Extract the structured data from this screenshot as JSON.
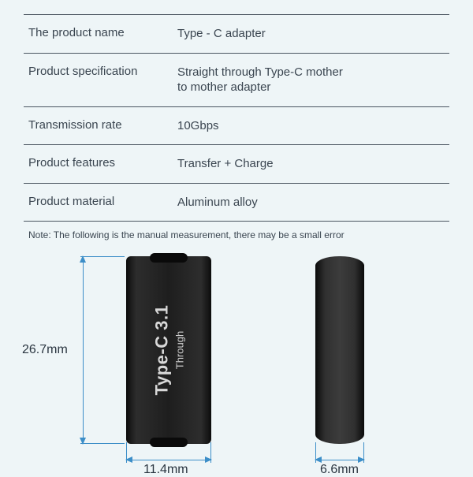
{
  "specs": {
    "rows": [
      {
        "label": "The product name",
        "value": "Type - C adapter"
      },
      {
        "label": "Product specification",
        "value": "Straight through Type-C mother\n to mother adapter"
      },
      {
        "label": "Transmission rate",
        "value": "10Gbps"
      },
      {
        "label": "Product features",
        "value": "Transfer + Charge"
      },
      {
        "label": "Product material",
        "value": "Aluminum alloy"
      }
    ],
    "note": "Note: The following is the manual measurement, there may be a small error"
  },
  "diagram": {
    "adapter_label_main": "Type-C 3.1",
    "adapter_label_sub": "Through",
    "height_label": "26.7mm",
    "width_front_label": "11.4mm",
    "width_side_label": "6.6mm",
    "height_mm": 26.7,
    "width_front_mm": 11.4,
    "width_side_mm": 6.6,
    "colors": {
      "background": "#eef5f7",
      "dimension_line": "#3c8ec8",
      "text": "#2a3540",
      "adapter_body_dark": "#0c0c0c",
      "adapter_body_light": "#2d2d2d",
      "adapter_label_text": "#d8d8d8",
      "table_border": "#4a5560"
    }
  }
}
